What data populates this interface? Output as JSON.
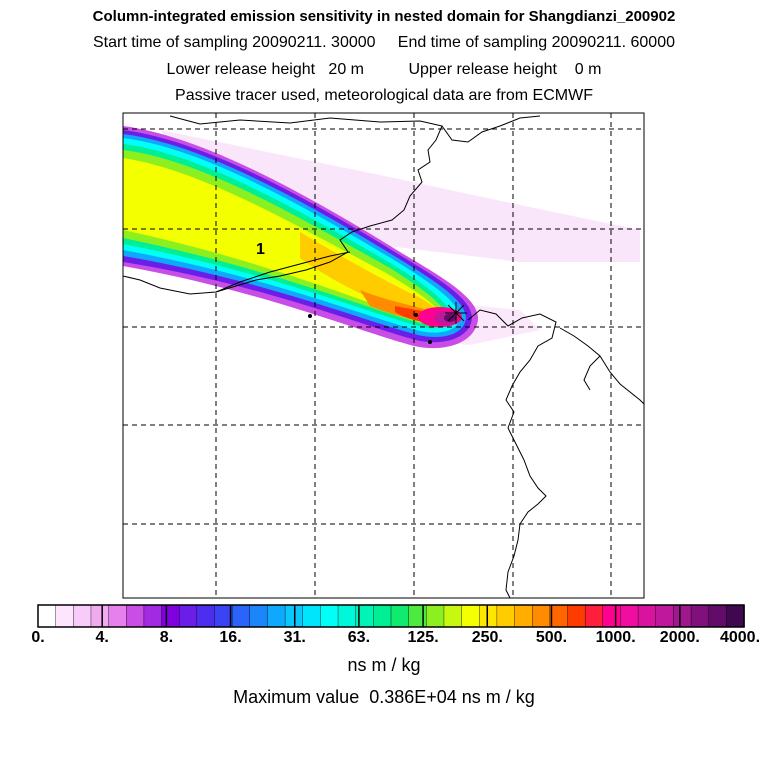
{
  "title": "Column-integrated emission sensitivity in nested domain for Shangdianzi_200902",
  "subtitle1": "Start time of sampling 20090211. 30000     End time of sampling 20090211. 60000",
  "subtitle2": "Lower release height   20 m          Upper release height    0 m",
  "subtitle3": "Passive tracer used, meteorological data are from ECMWF",
  "map": {
    "cluster_label": "1",
    "receptor_marker": "asterisk-star"
  },
  "colorbar": {
    "tick_labels": [
      "0.",
      "4.",
      "8.",
      "16.",
      "31.",
      "63.",
      "125.",
      "250.",
      "500.",
      "1000.",
      "2000.",
      "4000."
    ],
    "colors": [
      "#ffffff",
      "#fde6fd",
      "#f8ccf8",
      "#f0aaf0",
      "#e680ec",
      "#c84ee6",
      "#a22be2",
      "#8000e0",
      "#6a1ee8",
      "#4e2eee",
      "#3a44f4",
      "#2a64f8",
      "#1a86fa",
      "#10a8fc",
      "#08c8fc",
      "#00e4fc",
      "#00fff6",
      "#00f8da",
      "#00f4b8",
      "#00ee94",
      "#10ea6e",
      "#4cea40",
      "#8cf020",
      "#c6f810",
      "#f4ff00",
      "#ffe600",
      "#ffcc00",
      "#ffae00",
      "#ff8c00",
      "#ff6600",
      "#ff3c00",
      "#ff1e3c",
      "#ff0090",
      "#f00ea0",
      "#d8149e",
      "#c0189c",
      "#a0188e",
      "#80107c",
      "#600c68",
      "#400850"
    ]
  },
  "units": "ns m / kg",
  "max_value": "Maximum value  0.386E+04 ns m / kg"
}
